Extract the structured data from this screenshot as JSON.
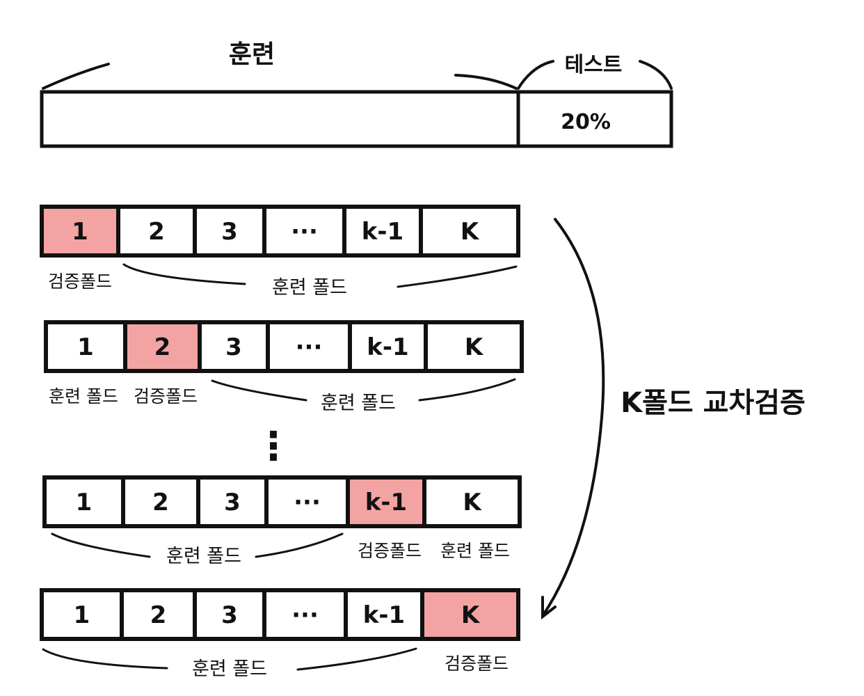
{
  "top": {
    "train_label": "훈련",
    "test_label": "테스트",
    "test_percent": "20%"
  },
  "fold_labels": [
    "1",
    "2",
    "3",
    "···",
    "k-1",
    "K"
  ],
  "colors": {
    "highlight": "#f4a3a3",
    "stroke": "#111111",
    "background": "#ffffff"
  },
  "rows": [
    {
      "highlight_index": 0,
      "labels": [
        "검증폴드",
        "훈련 폴드"
      ]
    },
    {
      "highlight_index": 1,
      "labels": [
        "훈련 폴드",
        "검증폴드",
        "훈련 폴드"
      ]
    },
    {
      "highlight_index": 4,
      "labels": [
        "훈련 폴드",
        "검증폴드",
        "훈련 폴드"
      ]
    },
    {
      "highlight_index": 5,
      "labels": [
        "훈련 폴드",
        "검증폴드"
      ]
    }
  ],
  "ellipsis": "⋮",
  "side_label": "K폴드 교차검증"
}
